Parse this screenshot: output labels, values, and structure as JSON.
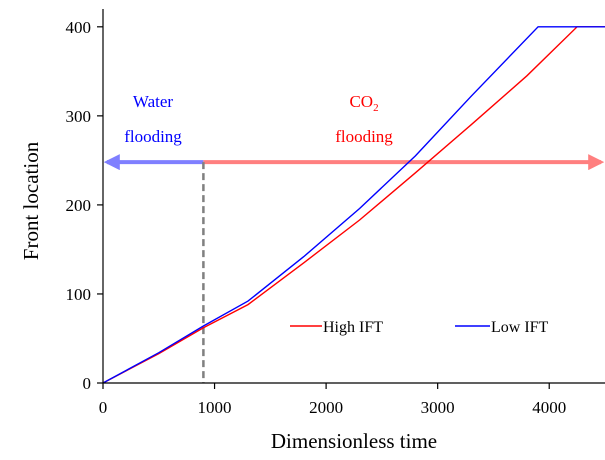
{
  "chart_data": {
    "type": "line",
    "title": "",
    "xlabel": "Dimensionless time",
    "ylabel": "Front location",
    "xlim": [
      0,
      4500
    ],
    "ylim": [
      0,
      420
    ],
    "x_ticks": [
      0,
      1000,
      2000,
      3000,
      4000
    ],
    "y_ticks": [
      0,
      100,
      200,
      300,
      400
    ],
    "grid": false,
    "legend_position": "bottom-right",
    "series": [
      {
        "name": "High IFT",
        "color": "#ff0000",
        "x": [
          0,
          500,
          900,
          1300,
          1800,
          2300,
          2800,
          3300,
          3800,
          4250,
          4500
        ],
        "y": [
          0,
          33,
          62,
          88,
          135,
          183,
          236,
          290,
          345,
          400,
          400
        ]
      },
      {
        "name": "Low IFT",
        "color": "#0000ff",
        "x": [
          0,
          500,
          900,
          1300,
          1800,
          2300,
          2800,
          3300,
          3900,
          4500
        ],
        "y": [
          0,
          34,
          64,
          92,
          142,
          196,
          255,
          322,
          400,
          400
        ]
      }
    ],
    "annotations": {
      "water_label_line1": "Water",
      "water_label_line2": "flooding",
      "water_color": "#0000ff",
      "co2_label_prefix": "CO",
      "co2_label_subscript": "2",
      "co2_label_line2": "flooding",
      "co2_color": "#ff0000",
      "arrow_y": 248,
      "divider_x": 900,
      "water_arrow_color": "#7f7fff",
      "co2_arrow_color": "#ff7f7f",
      "divider_color": "#808080"
    }
  }
}
